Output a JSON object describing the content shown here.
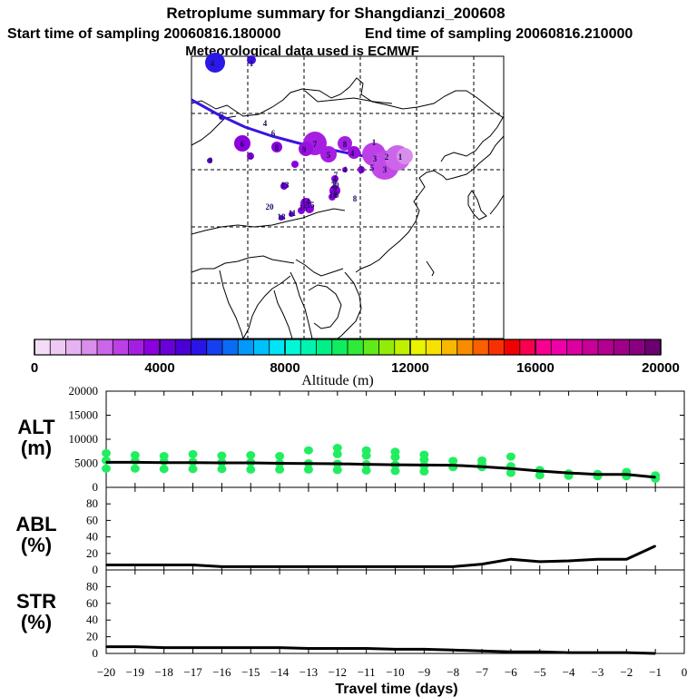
{
  "header": {
    "title": "Retroplume summary for Shangdianzi_200608",
    "start_label": "Start time of sampling 20060816.180000",
    "end_label": "End time of sampling 20060816.210000",
    "met_label": "Meteorological data used is ECMWF"
  },
  "colorbar": {
    "title": "Altitude (m)",
    "ticks": [
      "0",
      "4000",
      "8000",
      "12000",
      "16000",
      "20000"
    ],
    "colors": [
      "#f4dcf6",
      "#eecaf3",
      "#e6b2f0",
      "#da8eec",
      "#cc66e8",
      "#bd3fe6",
      "#a51ee2",
      "#8c00de",
      "#6a00d8",
      "#4a00d4",
      "#2a14e6",
      "#1440f0",
      "#0a6cf5",
      "#0498f8",
      "#00c0fa",
      "#00e4f8",
      "#00f8d8",
      "#00f4b0",
      "#00f088",
      "#10ec60",
      "#30ea38",
      "#60ea18",
      "#90ec08",
      "#c0f000",
      "#e8f400",
      "#f8e000",
      "#f8b800",
      "#f88c00",
      "#f86000",
      "#f83000",
      "#f00000",
      "#f80050",
      "#f80090",
      "#ee00a8",
      "#dc00a0",
      "#c80098",
      "#b40090",
      "#a00088",
      "#880080",
      "#6c0070"
    ]
  },
  "map": {
    "trajectory_numbers": [
      {
        "n": "4",
        "c": "#3a10e0"
      },
      {
        "n": "1",
        "c": "#3a10e0"
      },
      {
        "n": "7",
        "c": "#3a10e0"
      },
      {
        "n": "4",
        "c": "#3a10e0"
      },
      {
        "n": "6",
        "c": "#3a10e0"
      },
      {
        "n": "6",
        "c": "#8800de"
      },
      {
        "n": "8",
        "c": "#8800de"
      },
      {
        "n": "5",
        "c": "#8800de"
      },
      {
        "n": "7",
        "c": "#8800de"
      },
      {
        "n": "9",
        "c": "#8800de"
      },
      {
        "n": "5",
        "c": "#8800de"
      },
      {
        "n": "8",
        "c": "#8800de"
      },
      {
        "n": "4",
        "c": "#8800de"
      },
      {
        "n": "1",
        "c": "#8800de"
      },
      {
        "n": "3",
        "c": "#cc66e8"
      },
      {
        "n": "2",
        "c": "#cc66e8"
      },
      {
        "n": "1",
        "c": "#cc66e8"
      },
      {
        "n": "3",
        "c": "#cc66e8"
      },
      {
        "n": "5",
        "c": "#cc66e8"
      },
      {
        "n": "4",
        "c": "#8800de"
      },
      {
        "n": "3",
        "c": "#8800de"
      },
      {
        "n": "4",
        "c": "#8800de"
      },
      {
        "n": "7",
        "c": "#8800de"
      },
      {
        "n": "9",
        "c": "#8800de"
      },
      {
        "n": "20",
        "c": "#8800de"
      },
      {
        "n": "18",
        "c": "#8800de"
      },
      {
        "n": "6",
        "c": "#8800de"
      },
      {
        "n": "8",
        "c": "#8800de"
      },
      {
        "n": "13",
        "c": "#8800de"
      },
      {
        "n": "14",
        "c": "#8800de"
      },
      {
        "n": "15",
        "c": "#8800de"
      },
      {
        "n": "16",
        "c": "#8800de"
      },
      {
        "n": "11",
        "c": "#8800de"
      },
      {
        "n": "20",
        "c": "#3a10e0"
      },
      {
        "n": "18",
        "c": "#3a10e0"
      },
      {
        "n": "9",
        "c": "#3a10e0"
      },
      {
        "n": "7",
        "c": "#3a10e0"
      }
    ]
  },
  "chart_data": [
    {
      "type": "line",
      "panel": "ALT",
      "ylabel": "ALT (m)",
      "ylabel_line1": "ALT",
      "ylabel_line2": "(m)",
      "ylim": [
        0,
        20000
      ],
      "yticks": [
        "20000",
        "15000",
        "10000",
        "5000",
        "0"
      ],
      "x": [
        -20,
        -19,
        -18,
        -17,
        -16,
        -15,
        -14,
        -13,
        -12,
        -11,
        -10,
        -9,
        -8,
        -7,
        -6,
        -5,
        -4,
        -3,
        -2,
        -1
      ],
      "values": [
        5200,
        5200,
        5150,
        5150,
        5100,
        5100,
        5000,
        4950,
        4900,
        4800,
        4700,
        4650,
        4600,
        4300,
        3900,
        3400,
        3000,
        2700,
        2700,
        2100
      ],
      "marker_color": "#20ee60",
      "scatter": [
        {
          "x": -20,
          "y": 3900
        },
        {
          "x": -20,
          "y": 5600
        },
        {
          "x": -20,
          "y": 7100
        },
        {
          "x": -19,
          "y": 3900
        },
        {
          "x": -19,
          "y": 5500
        },
        {
          "x": -19,
          "y": 6700
        },
        {
          "x": -18,
          "y": 3800
        },
        {
          "x": -18,
          "y": 5400
        },
        {
          "x": -18,
          "y": 6500
        },
        {
          "x": -17,
          "y": 3800
        },
        {
          "x": -17,
          "y": 5300
        },
        {
          "x": -17,
          "y": 6900
        },
        {
          "x": -16,
          "y": 3800
        },
        {
          "x": -16,
          "y": 5200
        },
        {
          "x": -16,
          "y": 6600
        },
        {
          "x": -15,
          "y": 3700
        },
        {
          "x": -15,
          "y": 5200
        },
        {
          "x": -15,
          "y": 6700
        },
        {
          "x": -14,
          "y": 3700
        },
        {
          "x": -14,
          "y": 5000
        },
        {
          "x": -14,
          "y": 6500
        },
        {
          "x": -13,
          "y": 3700
        },
        {
          "x": -13,
          "y": 5000
        },
        {
          "x": -13,
          "y": 7700
        },
        {
          "x": -12,
          "y": 3600
        },
        {
          "x": -12,
          "y": 4900
        },
        {
          "x": -12,
          "y": 6900
        },
        {
          "x": -12,
          "y": 8200
        },
        {
          "x": -11,
          "y": 3500
        },
        {
          "x": -11,
          "y": 4800
        },
        {
          "x": -11,
          "y": 6600
        },
        {
          "x": -11,
          "y": 7700
        },
        {
          "x": -10,
          "y": 3400
        },
        {
          "x": -10,
          "y": 4700
        },
        {
          "x": -10,
          "y": 6300
        },
        {
          "x": -10,
          "y": 7400
        },
        {
          "x": -9,
          "y": 3300
        },
        {
          "x": -9,
          "y": 4500
        },
        {
          "x": -9,
          "y": 5800
        },
        {
          "x": -9,
          "y": 6800
        },
        {
          "x": -8,
          "y": 4200
        },
        {
          "x": -8,
          "y": 5500
        },
        {
          "x": -7,
          "y": 4200
        },
        {
          "x": -7,
          "y": 4700
        },
        {
          "x": -7,
          "y": 5600
        },
        {
          "x": -6,
          "y": 3000
        },
        {
          "x": -6,
          "y": 4400
        },
        {
          "x": -6,
          "y": 6400
        },
        {
          "x": -5,
          "y": 2500
        },
        {
          "x": -5,
          "y": 3600
        },
        {
          "x": -4,
          "y": 2400
        },
        {
          "x": -4,
          "y": 2900
        },
        {
          "x": -3,
          "y": 2300
        },
        {
          "x": -3,
          "y": 2800
        },
        {
          "x": -2,
          "y": 2300
        },
        {
          "x": -2,
          "y": 3200
        },
        {
          "x": -1,
          "y": 1800
        },
        {
          "x": -1,
          "y": 2500
        }
      ]
    },
    {
      "type": "line",
      "panel": "ABL",
      "ylabel": "ABL (%)",
      "ylabel_line1": "ABL",
      "ylabel_line2": "(%)",
      "ylim": [
        0,
        100
      ],
      "yticks": [
        "80",
        "60",
        "40",
        "20",
        "0"
      ],
      "x": [
        -20,
        -19,
        -18,
        -17,
        -16,
        -15,
        -14,
        -13,
        -12,
        -11,
        -10,
        -9,
        -8,
        -7,
        -6,
        -5,
        -4,
        -3,
        -2,
        -1
      ],
      "values": [
        6,
        6,
        6,
        6,
        4,
        4,
        4,
        4,
        4,
        4,
        4,
        4,
        4,
        7,
        13,
        10,
        11,
        13,
        13,
        29
      ]
    },
    {
      "type": "line",
      "panel": "STR",
      "ylabel": "STR (%)",
      "ylabel_line1": "STR",
      "ylabel_line2": "(%)",
      "ylim": [
        0,
        100
      ],
      "yticks": [
        "80",
        "60",
        "40",
        "20",
        "0"
      ],
      "xlabel": "Travel time (days)",
      "xticks": [
        "−20",
        "−19",
        "−18",
        "−17",
        "−16",
        "−15",
        "−14",
        "−13",
        "−12",
        "−11",
        "−10",
        "−9",
        "−8",
        "−7",
        "−6",
        "−5",
        "−4",
        "−3",
        "−2",
        "−1",
        "0"
      ],
      "x": [
        -20,
        -19,
        -18,
        -17,
        -16,
        -15,
        -14,
        -13,
        -12,
        -11,
        -10,
        -9,
        -8,
        -7,
        -6,
        -5,
        -4,
        -3,
        -2,
        -1
      ],
      "values": [
        8,
        8,
        7,
        7,
        7,
        7,
        7,
        6,
        6,
        6,
        5,
        5,
        4,
        3,
        2,
        2,
        1,
        1,
        1,
        0
      ]
    }
  ]
}
